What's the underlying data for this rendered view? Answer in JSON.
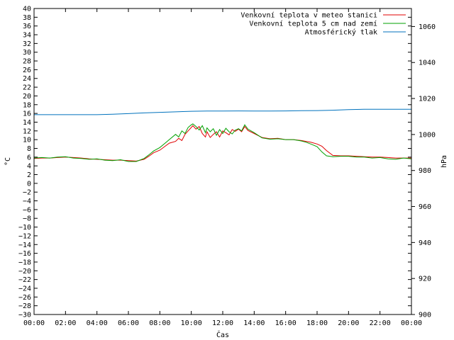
{
  "chart_data": {
    "type": "line",
    "title": "",
    "xlabel": "Čas",
    "ylabel": "°C",
    "y2label": "hPa",
    "xlim": [
      0,
      24
    ],
    "ylim": [
      -30,
      40
    ],
    "y2lim": [
      900,
      1070
    ],
    "grid": false,
    "legend": "top-right",
    "x_ticks": [
      {
        "v": 0,
        "label": "00:00"
      },
      {
        "v": 2,
        "label": "02:00"
      },
      {
        "v": 4,
        "label": "04:00"
      },
      {
        "v": 6,
        "label": "06:00"
      },
      {
        "v": 8,
        "label": "08:00"
      },
      {
        "v": 10,
        "label": "10:00"
      },
      {
        "v": 12,
        "label": "12:00"
      },
      {
        "v": 14,
        "label": "14:00"
      },
      {
        "v": 16,
        "label": "16:00"
      },
      {
        "v": 18,
        "label": "18:00"
      },
      {
        "v": 20,
        "label": "20:00"
      },
      {
        "v": 22,
        "label": "22:00"
      },
      {
        "v": 24,
        "label": "00:00"
      }
    ],
    "y_ticks": [
      40,
      38,
      36,
      34,
      32,
      30,
      28,
      26,
      24,
      22,
      20,
      18,
      16,
      14,
      12,
      10,
      8,
      6,
      4,
      2,
      0,
      -2,
      -4,
      -6,
      -8,
      -10,
      -12,
      -14,
      -16,
      -18,
      -20,
      -22,
      -24,
      -26,
      -28,
      -30
    ],
    "y2_ticks": [
      900,
      920,
      940,
      960,
      980,
      1000,
      1020,
      1040,
      1060
    ],
    "series": [
      {
        "name": "Venkovní teplota v meteo stanici",
        "axis": "y",
        "color": "#e00000",
        "x": [
          0,
          0.5,
          1,
          1.5,
          2,
          2.5,
          3,
          3.5,
          4,
          4.5,
          5,
          5.5,
          6,
          6.5,
          7,
          7.3,
          7.6,
          8,
          8.3,
          8.6,
          9,
          9.2,
          9.4,
          9.6,
          9.8,
          10,
          10.1,
          10.3,
          10.5,
          10.7,
          10.9,
          11,
          11.2,
          11.4,
          11.6,
          11.8,
          12,
          12.2,
          12.4,
          12.6,
          12.8,
          13,
          13.2,
          13.4,
          13.6,
          14,
          14.5,
          15,
          15.5,
          16,
          16.5,
          17,
          17.3,
          17.6,
          18,
          18.3,
          18.6,
          19,
          19.5,
          20,
          20.5,
          21,
          21.5,
          22,
          22.5,
          23,
          23.5,
          24
        ],
        "values": [
          5.7,
          5.8,
          5.8,
          5.9,
          6.0,
          5.9,
          5.8,
          5.6,
          5.5,
          5.4,
          5.3,
          5.3,
          5.2,
          5.1,
          5.5,
          6.2,
          7.0,
          7.6,
          8.4,
          9.2,
          9.6,
          10.3,
          9.8,
          11.2,
          12.0,
          12.8,
          13.2,
          12.4,
          13.0,
          11.4,
          10.6,
          11.8,
          10.5,
          11.2,
          11.8,
          10.6,
          12.0,
          11.6,
          11.1,
          12.3,
          11.9,
          12.4,
          11.8,
          13.0,
          12.1,
          11.4,
          10.5,
          10.2,
          10.3,
          10.0,
          10.0,
          9.8,
          9.6,
          9.4,
          9.0,
          8.5,
          7.5,
          6.4,
          6.3,
          6.3,
          6.2,
          6.1,
          6.0,
          6.0,
          5.9,
          5.8,
          5.8,
          5.8
        ]
      },
      {
        "name": "Venkovní teplota 5 cm nad zemí",
        "axis": "y",
        "color": "#00a000",
        "x": [
          0,
          0.5,
          1,
          1.5,
          2,
          2.5,
          3,
          3.5,
          4,
          4.5,
          5,
          5.5,
          6,
          6.5,
          7,
          7.3,
          7.6,
          8,
          8.3,
          8.6,
          9,
          9.2,
          9.4,
          9.6,
          9.8,
          10,
          10.1,
          10.3,
          10.5,
          10.7,
          10.9,
          11,
          11.2,
          11.4,
          11.6,
          11.8,
          12,
          12.2,
          12.4,
          12.6,
          12.8,
          13,
          13.2,
          13.4,
          13.6,
          14,
          14.5,
          15,
          15.5,
          16,
          16.5,
          17,
          17.3,
          17.6,
          18,
          18.3,
          18.6,
          19,
          19.5,
          20,
          20.5,
          21,
          21.5,
          22,
          22.5,
          23,
          23.5,
          24
        ],
        "values": [
          5.8,
          5.9,
          5.8,
          6.0,
          6.1,
          5.8,
          5.7,
          5.5,
          5.6,
          5.3,
          5.2,
          5.4,
          5.0,
          5.0,
          5.7,
          6.5,
          7.4,
          8.2,
          9.1,
          10.0,
          11.2,
          10.6,
          12.0,
          11.4,
          12.8,
          13.4,
          13.6,
          13.0,
          12.2,
          13.2,
          11.6,
          12.7,
          11.8,
          12.5,
          11.0,
          12.3,
          11.4,
          12.6,
          11.8,
          11.3,
          12.2,
          12.5,
          12.0,
          13.4,
          12.4,
          11.6,
          10.4,
          10.1,
          10.2,
          10.0,
          10.0,
          9.7,
          9.4,
          9.0,
          8.4,
          7.2,
          6.3,
          6.1,
          6.2,
          6.2,
          6.0,
          6.0,
          5.8,
          5.9,
          5.6,
          5.5,
          5.8,
          5.6
        ]
      },
      {
        "name": "Atmosférický tlak",
        "axis": "y2",
        "color": "#0072bd",
        "x": [
          0,
          1,
          2,
          3,
          4,
          5,
          6,
          7,
          8,
          9,
          10,
          11,
          12,
          13,
          14,
          15,
          16,
          17,
          18,
          19,
          20,
          21,
          22,
          23,
          24
        ],
        "values": [
          1011.0,
          1011.0,
          1011.0,
          1011.0,
          1011.0,
          1011.3,
          1011.6,
          1012.0,
          1012.3,
          1012.6,
          1012.9,
          1013.0,
          1013.0,
          1013.1,
          1013.0,
          1013.0,
          1013.1,
          1013.2,
          1013.3,
          1013.5,
          1013.8,
          1014.0,
          1014.0,
          1014.0,
          1014.0
        ]
      }
    ]
  }
}
